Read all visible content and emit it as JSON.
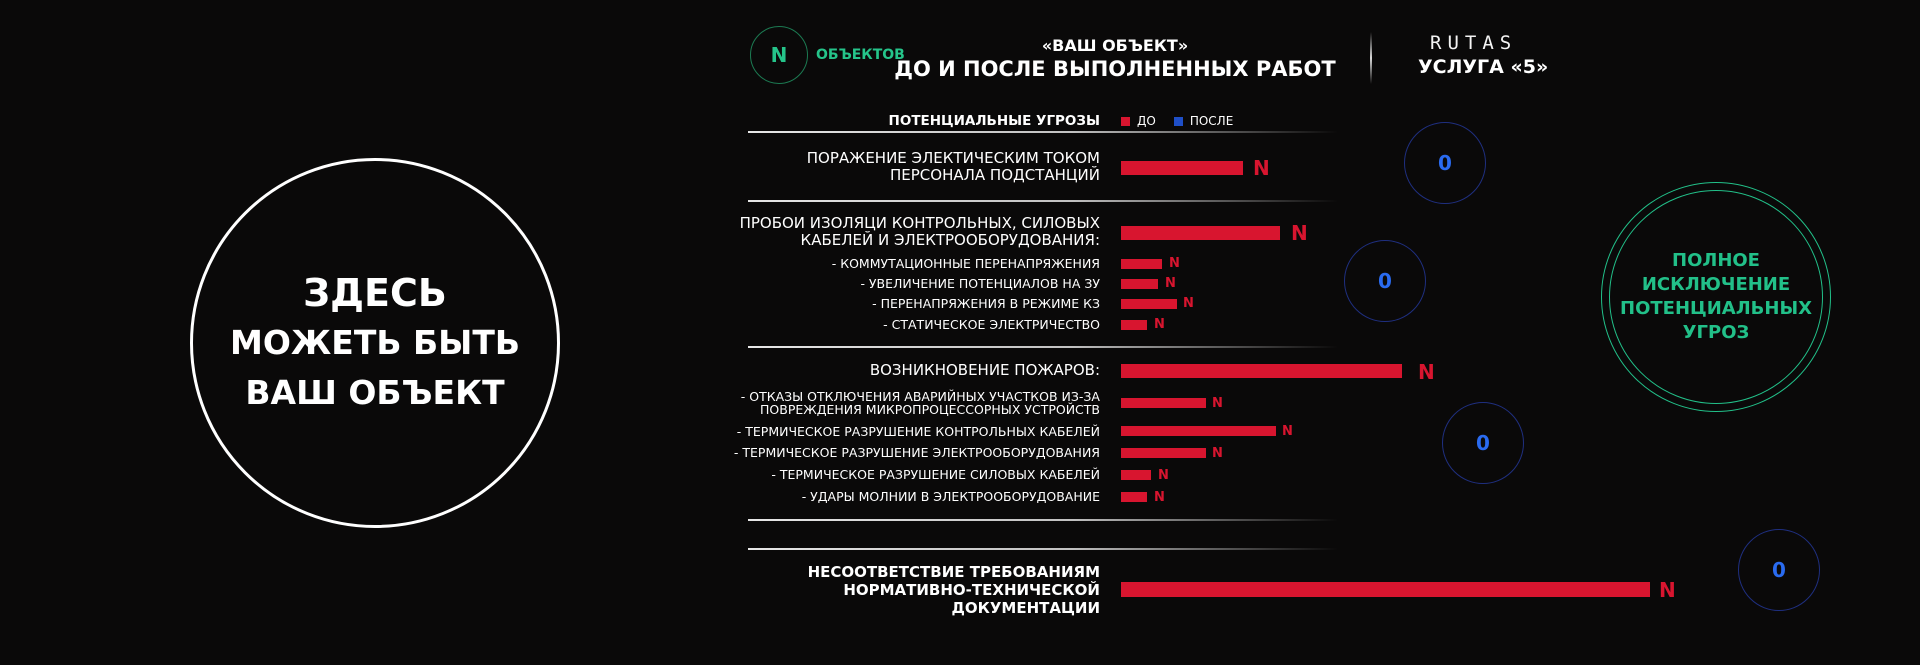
{
  "object_circle": {
    "line1": "ЗДЕСЬ",
    "line2": "МОЖЕТЬ БЫТЬ",
    "line3": "ВАШ ОБЪЕКТ"
  },
  "header": {
    "count_value": "N",
    "count_label": "ОБЪЕКТОВ",
    "title_line1": "«ВАШ ОБЪЕКТ»",
    "title_line2": "ДО И ПОСЛЕ  ВЫПОЛНЕННЫХ РАБОТ",
    "brand": "RUTAS",
    "service": "УСЛУГА «5»"
  },
  "legend": {
    "title": "ПОТЕНЦИАЛЬНЫЕ УГРОЗЫ",
    "before": "ДО",
    "after": "ПОСЛЕ",
    "before_color": "#d8152f",
    "after_color": "#1f4fc8"
  },
  "threats": {
    "electric": {
      "line1": "ПОРАЖЕНИЕ ЭЛЕКТИЧЕСКИМ ТОКОМ",
      "line2": "ПЕРСОНАЛА ПОДСТАНЦИЙ",
      "value": "N",
      "after": "0"
    },
    "insulation": {
      "line1": "ПРОБОИ ИЗОЛЯЦИ КОНТРОЛЬНЫХ, СИЛОВЫХ",
      "line2": "КАБЕЛЕЙ И ЭЛЕКТРООБОРУДОВАНИЯ:",
      "value": "N",
      "after": "0",
      "sub": [
        {
          "label": "- КОММУТАЦИОННЫЕ ПЕРЕНАПРЯЖЕНИЯ",
          "value": "N"
        },
        {
          "label": "- УВЕЛИЧЕНИЕ ПОТЕНЦИАЛОВ НА ЗУ",
          "value": "N"
        },
        {
          "label": "- ПЕРЕНАПРЯЖЕНИЯ В РЕЖИМЕ КЗ",
          "value": "N"
        },
        {
          "label": "- СТАТИЧЕСКОЕ ЭЛЕКТРИЧЕСТВО",
          "value": "N"
        }
      ]
    },
    "fires": {
      "line1": "ВОЗНИКНОВЕНИЕ ПОЖАРОВ:",
      "value": "N",
      "after": "0",
      "sub": [
        {
          "label": "- ОТКАЗЫ ОТКЛЮЧЕНИЯ АВАРИЙНЫХ УЧАСТКОВ ИЗ-ЗА",
          "label2": "ПОВРЕЖДЕНИЯ МИКРОПРОЦЕССОРНЫХ УСТРОЙСТВ",
          "value": "N"
        },
        {
          "label": "- ТЕРМИЧЕСКОЕ РАЗРУШЕНИЕ КОНТРОЛЬНЫХ КАБЕЛЕЙ",
          "value": "N"
        },
        {
          "label": "- ТЕРМИЧЕСКОЕ РАЗРУШЕНИЕ ЭЛЕКТРООБОРУДОВАНИЯ",
          "value": "N"
        },
        {
          "label": "- ТЕРМИЧЕСКОЕ РАЗРУШЕНИЕ СИЛОВЫХ КАБЕЛЕЙ",
          "value": "N"
        },
        {
          "label": "- УДАРЫ МОЛНИИ В ЭЛЕКТРООБОРУДОВАНИЕ",
          "value": "N"
        }
      ]
    },
    "noncompliance": {
      "line1": "НЕСООТВЕТСТВИЕ ТРЕБОВАНИЯМ",
      "line2": "НОРМАТИВНО-ТЕХНИЧЕСКОЙ",
      "line3": "ДОКУМЕНТАЦИИ",
      "value": "N",
      "after": "0"
    }
  },
  "result": {
    "line1": "ПОЛНОЕ",
    "line2": "ИСКЛЮЧЕНИЕ",
    "line3": "ПОТЕНЦИАЛЬНЫХ",
    "line4": "УГРОЗ",
    "color": "#22c089"
  }
}
